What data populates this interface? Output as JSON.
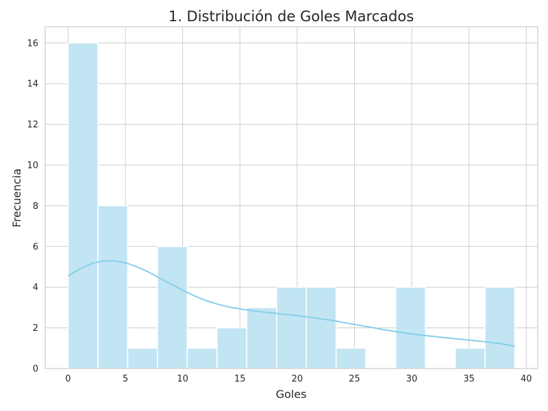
{
  "chart_data": {
    "type": "histogram",
    "title": "1. Distribución de Goles Marcados",
    "xlabel": "Goles",
    "ylabel": "Frecuencia",
    "xlim": [
      -2,
      41
    ],
    "ylim": [
      0,
      16.8
    ],
    "xticks": [
      0,
      5,
      10,
      15,
      20,
      25,
      30,
      35,
      40
    ],
    "yticks": [
      0,
      2,
      4,
      6,
      8,
      10,
      12,
      14,
      16
    ],
    "grid": true,
    "bins": [
      {
        "start": 0.0,
        "end": 2.6,
        "count": 16
      },
      {
        "start": 2.6,
        "end": 5.2,
        "count": 8
      },
      {
        "start": 5.2,
        "end": 7.8,
        "count": 1
      },
      {
        "start": 7.8,
        "end": 10.4,
        "count": 6
      },
      {
        "start": 10.4,
        "end": 13.0,
        "count": 1
      },
      {
        "start": 13.0,
        "end": 15.6,
        "count": 2
      },
      {
        "start": 15.6,
        "end": 18.2,
        "count": 3
      },
      {
        "start": 18.2,
        "end": 20.8,
        "count": 4
      },
      {
        "start": 20.8,
        "end": 23.4,
        "count": 4
      },
      {
        "start": 23.4,
        "end": 26.0,
        "count": 1
      },
      {
        "start": 26.0,
        "end": 28.6,
        "count": 0
      },
      {
        "start": 28.6,
        "end": 31.2,
        "count": 4
      },
      {
        "start": 31.2,
        "end": 33.8,
        "count": 0
      },
      {
        "start": 33.8,
        "end": 36.4,
        "count": 1
      },
      {
        "start": 36.4,
        "end": 39.0,
        "count": 4
      }
    ],
    "kde": {
      "x": [
        0,
        1,
        2,
        3,
        4,
        5,
        6,
        7,
        8,
        9,
        10,
        11,
        12,
        13,
        14,
        15,
        16,
        17,
        18,
        19,
        20,
        21,
        22,
        23,
        24,
        25,
        26,
        27,
        28,
        29,
        30,
        31,
        32,
        33,
        34,
        35,
        36,
        37,
        38,
        39
      ],
      "y": [
        4.55,
        4.9,
        5.15,
        5.28,
        5.3,
        5.2,
        5.0,
        4.75,
        4.45,
        4.15,
        3.85,
        3.58,
        3.35,
        3.17,
        3.03,
        2.93,
        2.85,
        2.78,
        2.72,
        2.66,
        2.6,
        2.53,
        2.45,
        2.37,
        2.27,
        2.17,
        2.07,
        1.97,
        1.87,
        1.78,
        1.7,
        1.63,
        1.57,
        1.51,
        1.45,
        1.4,
        1.34,
        1.28,
        1.2,
        1.1
      ]
    },
    "colors": {
      "bar": "#c2e5f3",
      "line": "#87ceeb"
    }
  }
}
